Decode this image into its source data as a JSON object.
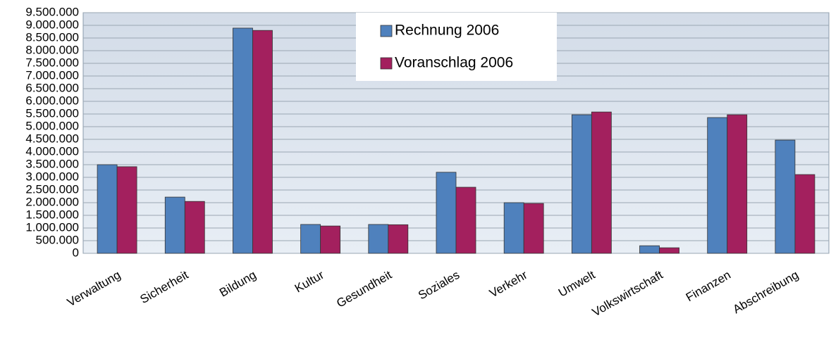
{
  "chart_data": {
    "type": "bar",
    "categories": [
      "Verwaltung",
      "Sicherheit",
      "Bildung",
      "Kultur",
      "Gesundheit",
      "Soziales",
      "Verkehr",
      "Umwelt",
      "Volkswirtschaft",
      "Finanzen",
      "Abschreibung"
    ],
    "series": [
      {
        "name": "Rechnung 2006",
        "color": "#4f81bd",
        "values": [
          3500000,
          2220000,
          8890000,
          1140000,
          1140000,
          3200000,
          2000000,
          5470000,
          300000,
          5360000,
          4470000
        ]
      },
      {
        "name": "Voranschlag 2006",
        "color": "#a3205e",
        "values": [
          3420000,
          2050000,
          8800000,
          1080000,
          1130000,
          2610000,
          1970000,
          5580000,
          220000,
          5470000,
          3110000
        ]
      }
    ],
    "ylim": [
      0,
      9500000
    ],
    "yticks": [
      0,
      {
        "value": 500000,
        "label": "500.000"
      },
      {
        "value": 1000000,
        "label": "1.000.000"
      },
      {
        "value": 1500000,
        "label": "1.500.000"
      },
      {
        "value": 2000000,
        "label": "2.000.000"
      },
      {
        "value": 2500000,
        "label": "2.500.000"
      },
      {
        "value": 3000000,
        "label": "3.000.000"
      },
      {
        "value": 3500000,
        "label": "3.500.000"
      },
      {
        "value": 4000000,
        "label": "4.000.000"
      },
      {
        "value": 4500000,
        "label": "4.500.000"
      },
      {
        "value": 5000000,
        "label": "5.000.000"
      },
      {
        "value": 5500000,
        "label": "5.500.000"
      },
      {
        "value": 6000000,
        "label": "6.000.000"
      },
      {
        "value": 6500000,
        "label": "6.500.000"
      },
      {
        "value": 7000000,
        "label": "7.000.000"
      },
      {
        "value": 7500000,
        "label": "7.500.000"
      },
      {
        "value": 8000000,
        "label": "8.000.000"
      },
      {
        "value": 8500000,
        "label": "8.500.000"
      },
      {
        "value": 9000000,
        "label": "9.000.000"
      },
      {
        "value": 9500000,
        "label": "9.500.000"
      }
    ],
    "grid": true
  }
}
